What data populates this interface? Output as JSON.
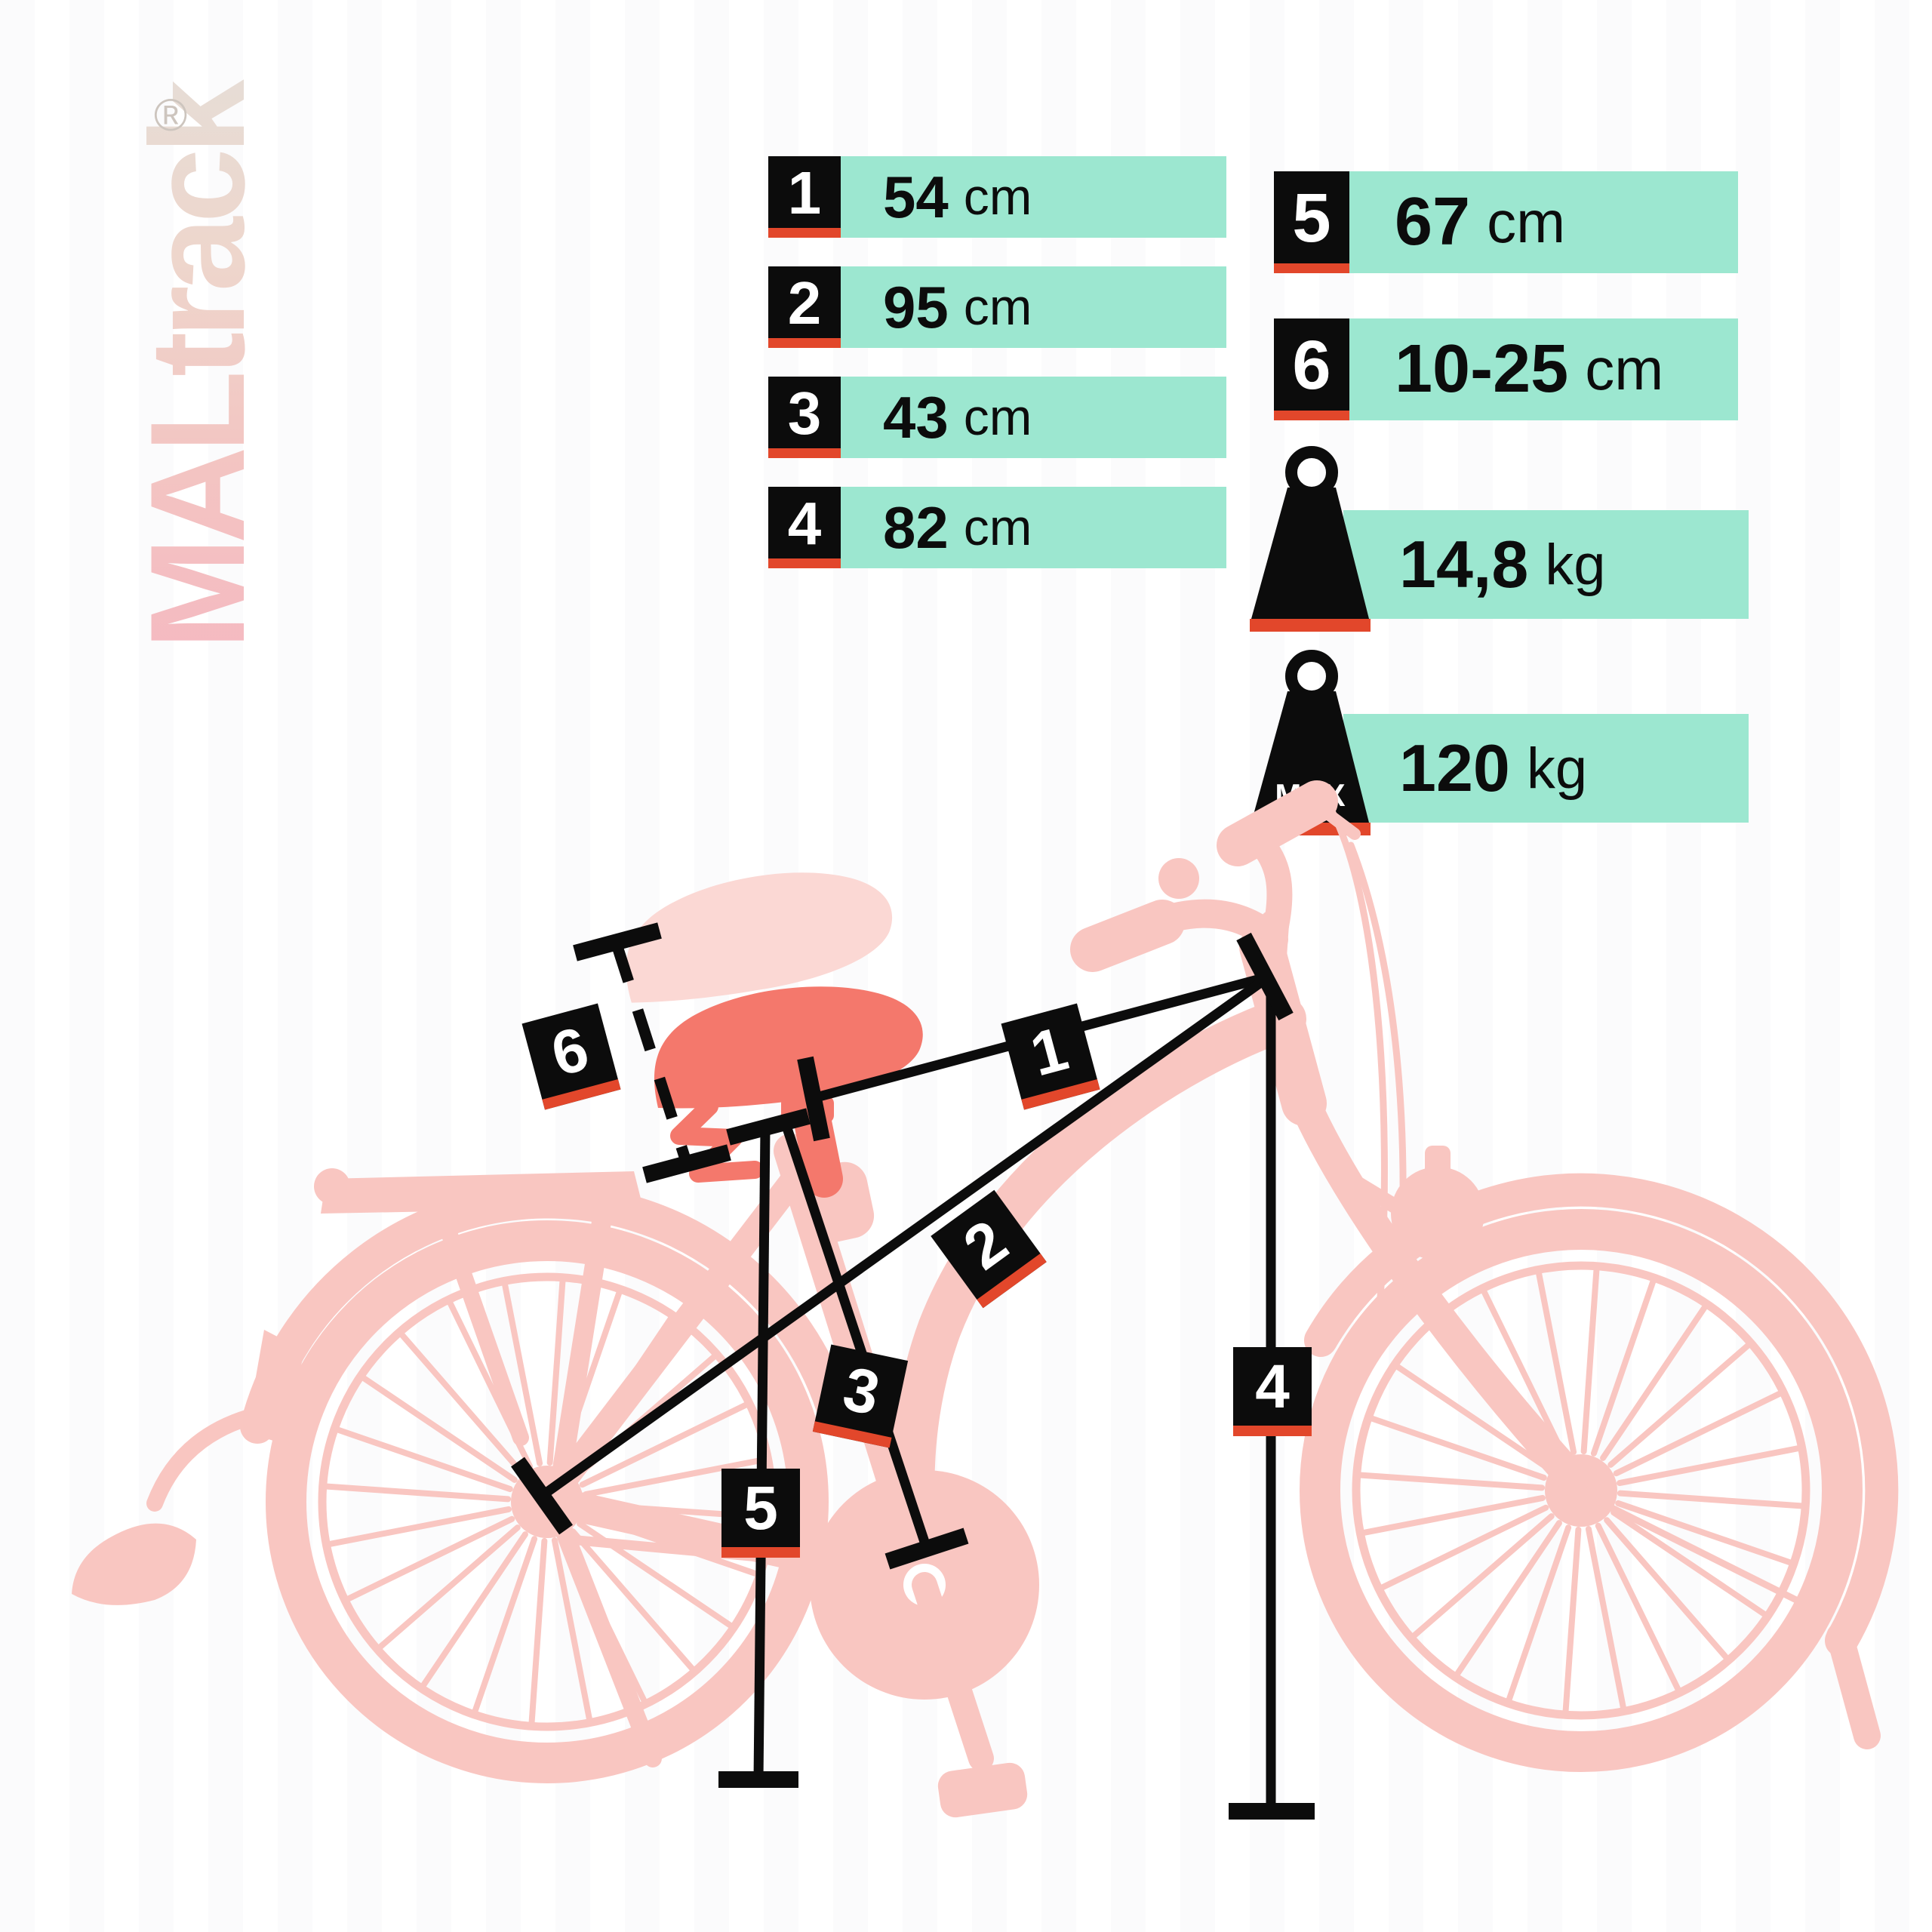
{
  "logo": {
    "brand": "MALtrack",
    "registered": "®"
  },
  "measurements": [
    {
      "marker": "1",
      "value": "54",
      "unit": "cm"
    },
    {
      "marker": "2",
      "value": "95",
      "unit": "cm"
    },
    {
      "marker": "3",
      "value": "43",
      "unit": "cm"
    },
    {
      "marker": "4",
      "value": "82",
      "unit": "cm"
    },
    {
      "marker": "5",
      "value": "67",
      "unit": "cm"
    },
    {
      "marker": "6",
      "value": "10-25",
      "unit": "cm"
    }
  ],
  "weights": [
    {
      "badge": "",
      "value": "14,8",
      "unit": "kg"
    },
    {
      "badge": "MAX",
      "value": "120",
      "unit": "kg"
    }
  ],
  "diagram": {
    "markers": [
      "1",
      "2",
      "3",
      "4",
      "5",
      "6"
    ]
  },
  "colors": {
    "accent_green": "#9ce7d0",
    "accent_red": "#e2472b",
    "label_black": "#0c0c0c",
    "bike_pink": "#f9c6c1",
    "saddle_red": "#f4786c"
  }
}
